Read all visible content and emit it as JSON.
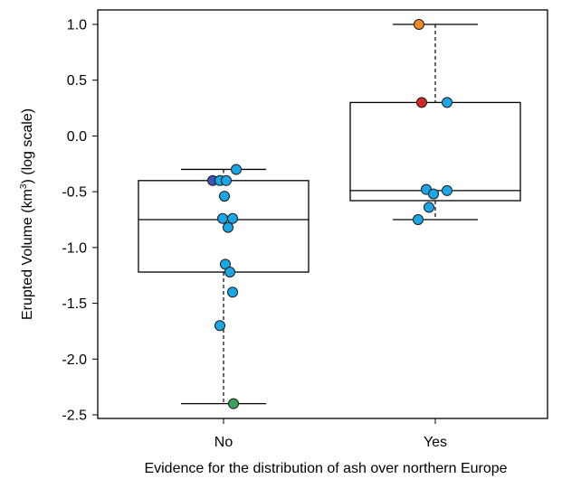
{
  "chart_data": {
    "type": "box",
    "title": "",
    "xlabel": "Evidence for the distribution of ash over northern Europe",
    "ylabel_prefix": "Erupted Volume (km",
    "ylabel_superscript": "3",
    "ylabel_suffix": ") (log scale)",
    "ylim": [
      -2.55,
      1.1
    ],
    "yticks": [
      1.0,
      0.5,
      0.0,
      -0.5,
      -1.0,
      -1.5,
      -2.0,
      -2.5
    ],
    "ytick_labels": [
      "1.0",
      "0.5",
      "0.0",
      "-0.5",
      "-1.0",
      "-1.5",
      "-2.0",
      "-2.5"
    ],
    "grid": false,
    "categories": [
      "No",
      "Yes"
    ],
    "boxes": [
      {
        "category": "No",
        "min": -2.4,
        "q1": -1.22,
        "median": -0.75,
        "q3": -0.4,
        "max": -0.3
      },
      {
        "category": "Yes",
        "min": -0.75,
        "q1": -0.58,
        "median": -0.49,
        "q3": 0.3,
        "max": 1.0
      }
    ],
    "points": [
      {
        "category": "No",
        "y": -0.3,
        "jitter": 0.14,
        "color": "#1aa7e8"
      },
      {
        "category": "No",
        "y": -0.4,
        "jitter": -0.12,
        "color": "#3f51b5"
      },
      {
        "category": "No",
        "y": -0.4,
        "jitter": -0.04,
        "color": "#1aa7e8"
      },
      {
        "category": "No",
        "y": -0.4,
        "jitter": 0.03,
        "color": "#1aa7e8"
      },
      {
        "category": "No",
        "y": -0.54,
        "jitter": 0.01,
        "color": "#1aa7e8"
      },
      {
        "category": "No",
        "y": -0.74,
        "jitter": -0.01,
        "color": "#1aa7e8"
      },
      {
        "category": "No",
        "y": -0.74,
        "jitter": 0.1,
        "color": "#1aa7e8"
      },
      {
        "category": "No",
        "y": -0.82,
        "jitter": 0.05,
        "color": "#1aa7e8"
      },
      {
        "category": "No",
        "y": -1.15,
        "jitter": 0.02,
        "color": "#1aa7e8"
      },
      {
        "category": "No",
        "y": -1.22,
        "jitter": 0.07,
        "color": "#1aa7e8"
      },
      {
        "category": "No",
        "y": -1.4,
        "jitter": 0.1,
        "color": "#1aa7e8"
      },
      {
        "category": "No",
        "y": -1.7,
        "jitter": -0.04,
        "color": "#1aa7e8"
      },
      {
        "category": "No",
        "y": -2.4,
        "jitter": 0.11,
        "color": "#3aa35a"
      },
      {
        "category": "Yes",
        "y": 1.0,
        "jitter": -0.18,
        "color": "#f08a24"
      },
      {
        "category": "Yes",
        "y": 0.3,
        "jitter": -0.15,
        "color": "#d62828"
      },
      {
        "category": "Yes",
        "y": 0.3,
        "jitter": 0.13,
        "color": "#1aa7e8"
      },
      {
        "category": "Yes",
        "y": -0.48,
        "jitter": -0.1,
        "color": "#1aa7e8"
      },
      {
        "category": "Yes",
        "y": -0.52,
        "jitter": -0.02,
        "color": "#1aa7e8"
      },
      {
        "category": "Yes",
        "y": -0.49,
        "jitter": 0.13,
        "color": "#1aa7e8"
      },
      {
        "category": "Yes",
        "y": -0.64,
        "jitter": -0.07,
        "color": "#1aa7e8"
      },
      {
        "category": "Yes",
        "y": -0.75,
        "jitter": -0.19,
        "color": "#1aa7e8"
      }
    ]
  }
}
